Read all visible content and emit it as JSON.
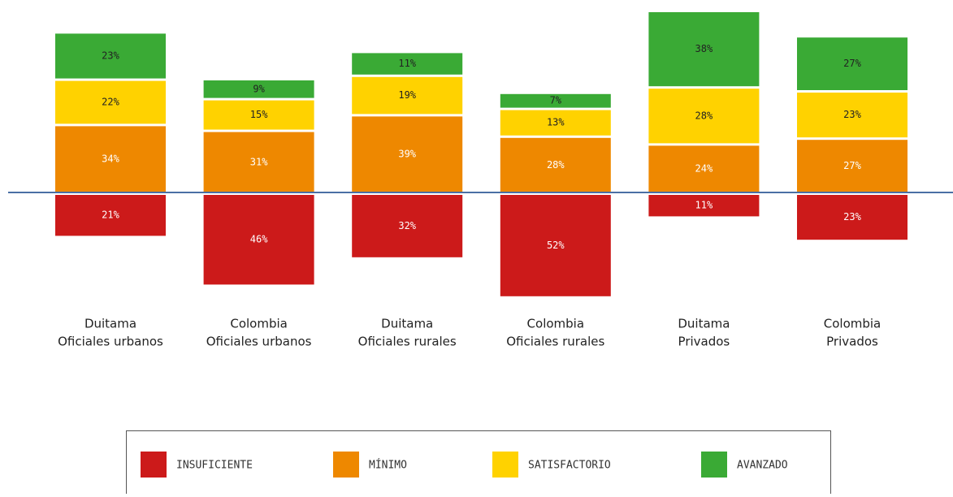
{
  "chart_data": {
    "type": "diverging-stacked-bar",
    "categories": [
      [
        "Duitama",
        "Oficiales urbanos"
      ],
      [
        "Colombia",
        "Oficiales urbanos"
      ],
      [
        "Duitama",
        "Oficiales rurales"
      ],
      [
        "Colombia",
        "Oficiales rurales"
      ],
      [
        "Duitama",
        "Privados"
      ],
      [
        "Colombia",
        "Privados"
      ]
    ],
    "series": [
      {
        "name": "INSUFICIENTE",
        "color": "#cc1a1a",
        "values": [
          21,
          46,
          32,
          52,
          11,
          23
        ],
        "value_labels": [
          "21%",
          "46%",
          "32%",
          "52%",
          "11%",
          "23%"
        ]
      },
      {
        "name": "MÍNIMO",
        "color": "#ee8800",
        "values": [
          34,
          31,
          39,
          28,
          24,
          27
        ],
        "value_labels": [
          "34%",
          "31%",
          "39%",
          "28%",
          "24%",
          "27%"
        ]
      },
      {
        "name": "SATISFACTORIO",
        "color": "#ffd200",
        "values": [
          22,
          15,
          19,
          13,
          28,
          23
        ],
        "value_labels": [
          "22%",
          "15%",
          "19%",
          "13%",
          "28%",
          "23%"
        ]
      },
      {
        "name": "AVANZADO",
        "color": "#3aaa35",
        "values": [
          23,
          9,
          11,
          7,
          38,
          27
        ],
        "value_labels": [
          "23%",
          "9%",
          "11%",
          "7%",
          "38%",
          "27%"
        ]
      }
    ]
  }
}
